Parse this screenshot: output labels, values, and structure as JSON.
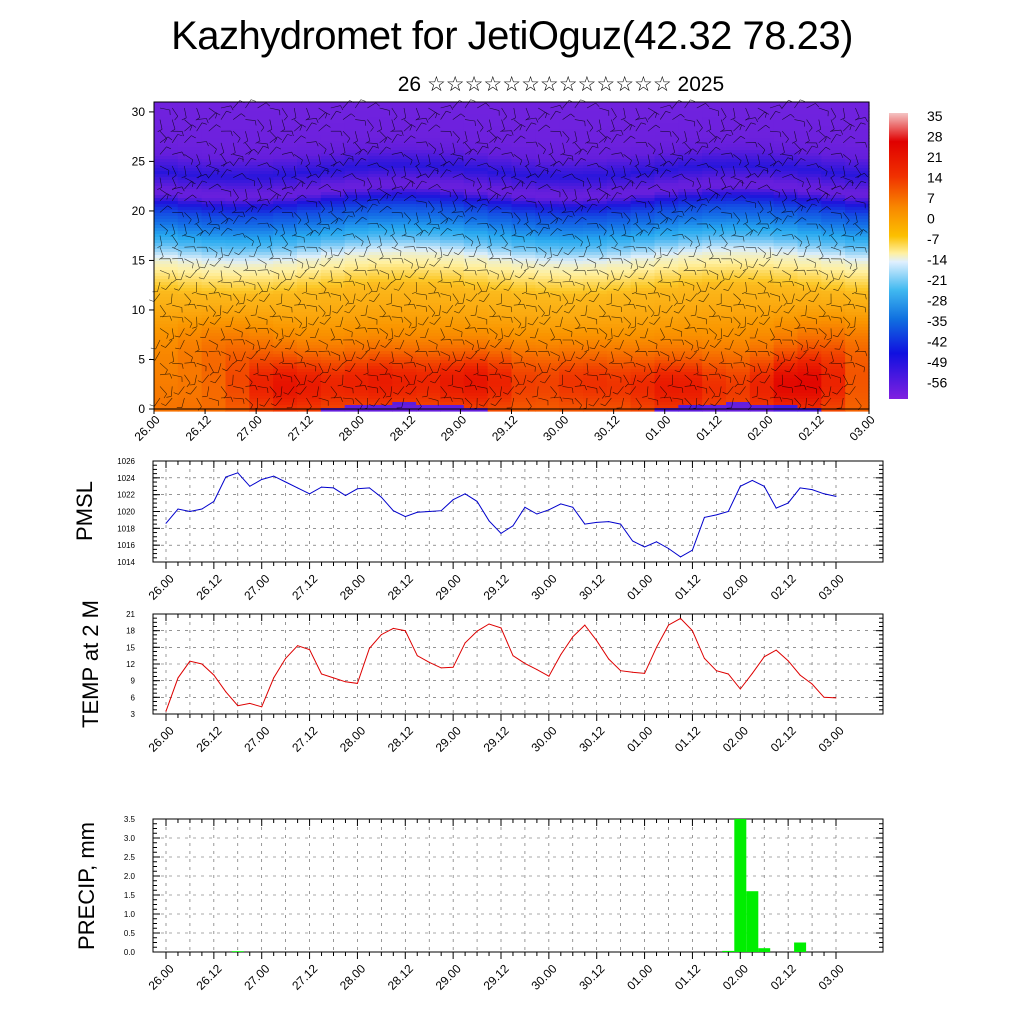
{
  "title": "Kazhydromet for JetiOguz(42.32 78.23)",
  "subtitle": "26 ☆☆☆☆☆☆☆☆☆☆☆☆☆ 2025",
  "time_labels": [
    "26.00",
    "26.12",
    "27.00",
    "27.12",
    "28.00",
    "28.12",
    "29.00",
    "29.12",
    "30.00",
    "30.12",
    "01.00",
    "01.12",
    "02.00",
    "02.12",
    "03.00"
  ],
  "colors": {
    "pmsl_line": "#0000cc",
    "temp_line": "#dd0000",
    "precip_bar": "#00ee00",
    "frame": "#000000"
  },
  "chart_data": [
    {
      "type": "heatmap",
      "name": "upper-air",
      "y_ticks": [
        0,
        5,
        10,
        15,
        20,
        25,
        30
      ],
      "ylim": [
        0,
        31
      ],
      "colorbar_labels": [
        "35",
        "28",
        "21",
        "14",
        "7",
        "0",
        "-7",
        "-14",
        "-21",
        "-28",
        "-35",
        "-42",
        "-49",
        "-56"
      ],
      "profile": [
        [
          0,
          12
        ],
        [
          4,
          9
        ],
        [
          8,
          6
        ],
        [
          12,
          2
        ],
        [
          15,
          -10
        ],
        [
          17,
          -25
        ],
        [
          20,
          -40
        ],
        [
          22,
          -58
        ],
        [
          24,
          -50
        ],
        [
          27,
          -60
        ],
        [
          31,
          -62
        ]
      ],
      "warm_spots": [
        [
          5.5,
          2.5,
          14
        ],
        [
          9.5,
          3,
          12
        ],
        [
          13.5,
          3,
          14
        ],
        [
          18,
          3,
          10
        ],
        [
          22,
          2.5,
          13
        ],
        [
          27,
          2.5,
          16
        ],
        [
          3,
          6,
          5
        ],
        [
          28.5,
          6,
          6
        ]
      ]
    },
    {
      "type": "line",
      "name": "PMSL",
      "ylabel": "PMSL",
      "y_ticks": [
        1014,
        1016,
        1018,
        1020,
        1022,
        1024,
        1026
      ],
      "ylim": [
        1014,
        1026
      ],
      "x_steps": [
        0,
        1,
        2,
        3,
        4,
        5,
        6,
        7,
        8,
        9,
        10,
        11,
        12,
        13,
        14,
        15,
        16,
        17,
        18,
        19,
        20,
        21,
        22,
        23,
        24,
        25,
        26,
        27,
        28,
        29,
        30,
        31,
        32,
        33,
        34,
        35,
        36,
        37,
        38,
        39,
        40,
        41,
        42,
        43,
        44,
        45,
        46,
        47,
        48,
        49,
        50,
        51,
        52,
        53,
        54,
        55,
        56
      ],
      "values": [
        1018.6,
        1020.3,
        1020.0,
        1020.3,
        1021.2,
        1024.1,
        1024.6,
        1023.0,
        1023.8,
        1024.2,
        1023.5,
        1022.8,
        1022.1,
        1022.9,
        1022.8,
        1021.9,
        1022.7,
        1022.8,
        1021.7,
        1020.1,
        1019.4,
        1019.9,
        1020.0,
        1020.1,
        1021.4,
        1022.1,
        1021.2,
        1018.9,
        1017.4,
        1018.3,
        1020.5,
        1019.7,
        1020.2,
        1020.9,
        1020.5,
        1018.5,
        1018.7,
        1018.8,
        1018.5,
        1016.5,
        1015.8,
        1016.4,
        1015.6,
        1014.6,
        1015.4,
        1019.3,
        1019.6,
        1020.0,
        1023.0,
        1023.7,
        1023.0,
        1020.4,
        1021.0,
        1022.8,
        1022.6,
        1022.1,
        1021.8
      ]
    },
    {
      "type": "line",
      "name": "TEMP at 2 M",
      "ylabel": "TEMP at 2 M",
      "y_ticks": [
        3,
        6,
        9,
        12,
        15,
        18,
        21
      ],
      "ylim": [
        3,
        21
      ],
      "x_steps": [
        0,
        1,
        2,
        3,
        4,
        5,
        6,
        7,
        8,
        9,
        10,
        11,
        12,
        13,
        14,
        15,
        16,
        17,
        18,
        19,
        20,
        21,
        22,
        23,
        24,
        25,
        26,
        27,
        28,
        29,
        30,
        31,
        32,
        33,
        34,
        35,
        36,
        37,
        38,
        39,
        40,
        41,
        42,
        43,
        44,
        45,
        46,
        47,
        48,
        49,
        50,
        51,
        52,
        53,
        54,
        55,
        56
      ],
      "values": [
        3.5,
        9.5,
        12.5,
        12.0,
        10.0,
        7.0,
        4.5,
        4.9,
        4.3,
        9.5,
        13.0,
        15.3,
        14.6,
        10.2,
        9.5,
        8.8,
        8.5,
        14.8,
        17.3,
        18.4,
        18.0,
        13.5,
        12.3,
        11.3,
        11.4,
        15.8,
        17.9,
        19.2,
        18.5,
        13.5,
        12.1,
        11.0,
        9.8,
        13.7,
        16.9,
        19.0,
        16.2,
        12.9,
        10.8,
        10.5,
        10.3,
        15.0,
        19.0,
        20.2,
        18.0,
        13.0,
        10.8,
        10.2,
        7.5,
        10.3,
        13.3,
        14.5,
        12.6,
        10.0,
        8.4,
        6.0,
        5.9
      ]
    },
    {
      "type": "bar",
      "name": "PRECIP",
      "ylabel": "PRECIP, mm",
      "y_ticks": [
        0.0,
        0.5,
        1.0,
        1.5,
        2.0,
        2.5,
        3.0,
        3.5
      ],
      "y_tick_labels": [
        "0.0",
        "0.5",
        "1.0",
        "1.5",
        "2.0",
        "2.5",
        "3.0",
        "3.5"
      ],
      "ylim": [
        0,
        3.5
      ],
      "x_steps": [
        6,
        47,
        48,
        49,
        50,
        53
      ],
      "values": [
        0.02,
        0.03,
        3.5,
        1.6,
        0.1,
        0.25
      ]
    }
  ]
}
